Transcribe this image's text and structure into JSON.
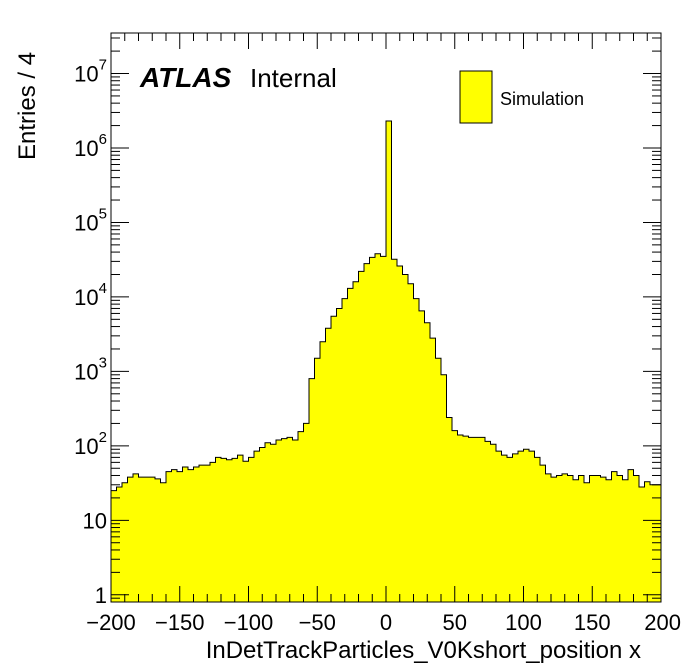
{
  "chart_data": {
    "type": "histogram",
    "yscale": "log",
    "title": "",
    "xlabel": "InDetTrackParticles_V0Kshort_position x",
    "ylabel": "Entries / 4",
    "xlim": [
      -200,
      200
    ],
    "ylim": [
      0.8,
      35000000
    ],
    "bin_width": 4,
    "x_ticks": [
      "−200",
      "−150",
      "−100",
      "−50",
      "0",
      "50",
      "100",
      "150",
      "200"
    ],
    "x_tick_values": [
      -200,
      -150,
      -100,
      -50,
      0,
      50,
      100,
      150,
      200
    ],
    "y_ticks": [
      {
        "value": 1,
        "base": "1",
        "exp": ""
      },
      {
        "value": 10,
        "base": "10",
        "exp": ""
      },
      {
        "value": 100,
        "base": "10",
        "exp": "2"
      },
      {
        "value": 1000,
        "base": "10",
        "exp": "3"
      },
      {
        "value": 10000,
        "base": "10",
        "exp": "4"
      },
      {
        "value": 100000,
        "base": "10",
        "exp": "5"
      },
      {
        "value": 1000000,
        "base": "10",
        "exp": "6"
      },
      {
        "value": 10000000,
        "base": "10",
        "exp": "7"
      }
    ],
    "labels": {
      "experiment": "ATLAS",
      "status": "Internal"
    },
    "legend": {
      "position": "top-right",
      "entries": [
        "Simulation"
      ]
    },
    "colors": {
      "fill": "#ffff00",
      "line": "#000000"
    },
    "series": [
      {
        "name": "Simulation",
        "bin_edges_start": -200,
        "values": [
          25,
          28,
          32,
          38,
          42,
          38,
          38,
          38,
          36,
          32,
          45,
          48,
          45,
          52,
          48,
          52,
          55,
          55,
          60,
          70,
          68,
          65,
          68,
          75,
          62,
          70,
          85,
          95,
          110,
          105,
          120,
          125,
          130,
          120,
          155,
          200,
          800,
          1500,
          2500,
          3800,
          5500,
          7000,
          9500,
          13000,
          16000,
          22000,
          28000,
          34000,
          38000,
          35000,
          2300000,
          32000,
          26000,
          20000,
          15000,
          9500,
          6500,
          4500,
          2800,
          1500,
          900,
          240,
          160,
          140,
          135,
          130,
          130,
          130,
          115,
          105,
          85,
          75,
          70,
          78,
          85,
          90,
          85,
          70,
          55,
          42,
          38,
          40,
          42,
          40,
          35,
          40,
          32,
          40,
          40,
          38,
          35,
          45,
          40,
          35,
          48,
          40,
          28,
          33,
          30,
          30
        ]
      }
    ]
  }
}
